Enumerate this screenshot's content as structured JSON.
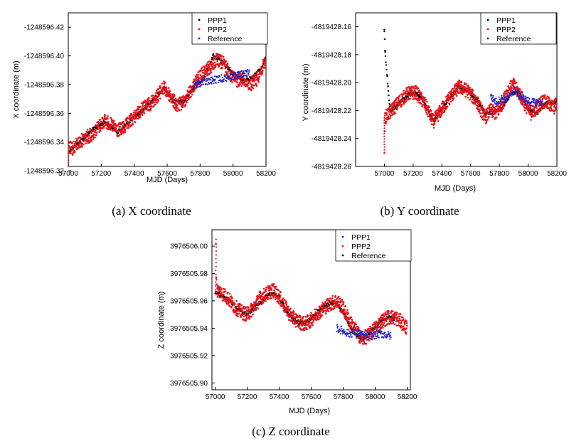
{
  "chart_data": [
    {
      "type": "scatter",
      "panel": "x",
      "caption": "(a) X coordinate",
      "xlabel": "MJD (Days)",
      "ylabel": "X coordinate (m)",
      "xlim": [
        57000,
        58200
      ],
      "ylim": [
        -1248596.323,
        -1248596.43
      ],
      "x_ticks": [
        57000,
        57200,
        57400,
        57600,
        57800,
        58000,
        58200
      ],
      "y_ticks": [
        "-1248596.32",
        "-1248596.34",
        "-1248596.36",
        "-1248596.38",
        "-1248596.40",
        "-1248596.42"
      ],
      "legend_position": "top-right",
      "grid": false,
      "series": [
        {
          "name": "PPP1",
          "color": "#000000",
          "x": [
            57000,
            57060,
            57140,
            57220,
            57300,
            57380,
            57460,
            57520,
            57580,
            57640,
            57700,
            57760,
            57820,
            57880,
            57940,
            58000,
            58060,
            58120,
            58180,
            58210
          ],
          "y": [
            -1248596.333,
            -1248596.339,
            -1248596.348,
            -1248596.354,
            -1248596.347,
            -1248596.355,
            -1248596.363,
            -1248596.37,
            -1248596.378,
            -1248596.368,
            -1248596.368,
            -1248596.378,
            -1248596.384,
            -1248596.4,
            -1248596.395,
            -1248596.387,
            -1248596.383,
            -1248596.385,
            -1248596.393,
            -1248596.403
          ]
        },
        {
          "name": "PPP2",
          "color": "#e8141b",
          "x": [
            57000,
            57005,
            57020,
            57060,
            57100,
            57140,
            57180,
            57220,
            57260,
            57300,
            57340,
            57380,
            57420,
            57460,
            57500,
            57540,
            57580,
            57620,
            57660,
            57700,
            57740,
            57780,
            57820,
            57860,
            57900,
            57940,
            57980,
            58020,
            58060,
            58100,
            58140,
            58180,
            58210
          ],
          "y": [
            -1248596.323,
            -1248596.336,
            -1248596.335,
            -1248596.339,
            -1248596.343,
            -1248596.345,
            -1248596.35,
            -1248596.355,
            -1248596.352,
            -1248596.348,
            -1248596.35,
            -1248596.355,
            -1248596.36,
            -1248596.364,
            -1248596.367,
            -1248596.372,
            -1248596.378,
            -1248596.372,
            -1248596.365,
            -1248596.368,
            -1248596.375,
            -1248596.383,
            -1248596.388,
            -1248596.392,
            -1248596.397,
            -1248596.395,
            -1248596.388,
            -1248596.383,
            -1248596.384,
            -1248596.38,
            -1248596.383,
            -1248596.392,
            -1248596.398
          ]
        },
        {
          "name": "Reference",
          "color": "#2323c8",
          "x": [
            57760,
            57800,
            57840,
            57880,
            57920,
            57960,
            58000,
            58040,
            58080,
            58100
          ],
          "y": [
            -1248596.379,
            -1248596.381,
            -1248596.382,
            -1248596.383,
            -1248596.384,
            -1248596.385,
            -1248596.386,
            -1248596.387,
            -1248596.388,
            -1248596.388
          ]
        }
      ]
    },
    {
      "type": "scatter",
      "panel": "y",
      "caption": "(b) Y coordinate",
      "xlabel": "MJD (Days)",
      "ylabel": "Y coordinate (m)",
      "xlim": [
        56800,
        58200
      ],
      "ylim": [
        -4819428.26,
        -4819428.15
      ],
      "x_ticks": [
        57000,
        57200,
        57400,
        57600,
        57800,
        58000,
        58200
      ],
      "y_ticks": [
        "-4819428.16",
        "-4819428.18",
        "-4819428.20",
        "-4819428.22",
        "-4819428.24",
        "-4819428.26"
      ],
      "legend_position": "top-right",
      "grid": false,
      "series": [
        {
          "name": "PPP1",
          "color": "#000000",
          "x": [
            57000,
            57005,
            57040,
            57100,
            57160,
            57220,
            57280,
            57340,
            57400,
            57460,
            57520,
            57580,
            57640,
            57700,
            57760,
            57820,
            57880,
            57940,
            58000,
            58060,
            58120,
            58180,
            58200
          ],
          "y": [
            -4819428.162,
            -4819428.178,
            -4819428.221,
            -4819428.215,
            -4819428.209,
            -4819428.207,
            -4819428.214,
            -4819428.228,
            -4819428.219,
            -4819428.21,
            -4819428.203,
            -4819428.206,
            -4819428.212,
            -4819428.222,
            -4819428.221,
            -4819428.218,
            -4819428.207,
            -4819428.208,
            -4819428.219,
            -4819428.222,
            -4819428.215,
            -4819428.214,
            -4819428.213
          ]
        },
        {
          "name": "PPP2",
          "color": "#e8141b",
          "x": [
            57000,
            57000,
            57005,
            57040,
            57100,
            57160,
            57220,
            57280,
            57340,
            57400,
            57460,
            57520,
            57580,
            57640,
            57700,
            57740,
            57780,
            57820,
            57860,
            57900,
            57940,
            57980,
            58020,
            58060,
            58100,
            58140,
            58180,
            58200
          ],
          "y": [
            -4819428.25,
            -4819428.236,
            -4819428.225,
            -4819428.221,
            -4819428.214,
            -4819428.208,
            -4819428.207,
            -4819428.215,
            -4819428.228,
            -4819428.219,
            -4819428.21,
            -4819428.203,
            -4819428.206,
            -4819428.213,
            -4819428.225,
            -4819428.22,
            -4819428.222,
            -4819428.215,
            -4819428.205,
            -4819428.202,
            -4819428.208,
            -4819428.216,
            -4819428.222,
            -4819428.218,
            -4819428.213,
            -4819428.215,
            -4819428.218,
            -4819428.214
          ]
        },
        {
          "name": "Reference",
          "color": "#2323c8",
          "x": [
            57740,
            57780,
            57820,
            57860,
            57900,
            57940,
            57980,
            58020,
            58060,
            58100
          ],
          "y": [
            -4819428.21,
            -4819428.214,
            -4819428.211,
            -4819428.212,
            -4819428.205,
            -4819428.209,
            -4819428.212,
            -4819428.214,
            -4819428.214,
            -4819428.214
          ]
        }
      ]
    },
    {
      "type": "scatter",
      "panel": "z",
      "caption": "(c) Z coordinate",
      "xlabel": "MJD (Days)",
      "ylabel": "Z coordinate (m)",
      "xlim": [
        56980,
        58220
      ],
      "ylim": [
        3976505.895,
        3976506.012
      ],
      "x_ticks": [
        57000,
        57200,
        57400,
        57600,
        57800,
        58000,
        58200
      ],
      "y_ticks": [
        "3976505.90",
        "3976505.92",
        "3976505.94",
        "3976505.96",
        "3976505.98",
        "3976506.00"
      ],
      "legend_position": "top-right",
      "grid": false,
      "series": [
        {
          "name": "PPP1",
          "color": "#2323c8",
          "x": [
            57760,
            57800,
            57840,
            57880,
            57920,
            57960,
            58000,
            58040,
            58080,
            58100
          ],
          "y": [
            3976505.94,
            3976505.938,
            3976505.936,
            3976505.937,
            3976505.935,
            3976505.934,
            3976505.935,
            3976505.936,
            3976505.935,
            3976505.934
          ]
        },
        {
          "name": "PPP2",
          "color": "#e8141b",
          "x": [
            57005,
            57005,
            57010,
            57040,
            57080,
            57120,
            57160,
            57200,
            57240,
            57280,
            57320,
            57360,
            57400,
            57440,
            57480,
            57520,
            57560,
            57600,
            57640,
            57680,
            57720,
            57760,
            57800,
            57840,
            57880,
            57920,
            57960,
            58000,
            58040,
            58080,
            58120,
            58160,
            58200
          ],
          "y": [
            3976506.005,
            3976505.98,
            3976505.968,
            3976505.966,
            3976505.962,
            3976505.956,
            3976505.952,
            3976505.95,
            3976505.955,
            3976505.962,
            3976505.965,
            3976505.968,
            3976505.963,
            3976505.955,
            3976505.948,
            3976505.945,
            3976505.943,
            3976505.946,
            3976505.951,
            3976505.955,
            3976505.958,
            3976505.96,
            3976505.955,
            3976505.945,
            3976505.938,
            3976505.932,
            3976505.935,
            3976505.94,
            3976505.945,
            3976505.948,
            3976505.948,
            3976505.945,
            3976505.94
          ]
        },
        {
          "name": "Reference",
          "color": "#000000",
          "x": [
            57000,
            57040,
            57080,
            57120,
            57160,
            57200,
            57240,
            57280,
            57320,
            57360,
            57400,
            57440,
            57480,
            57520,
            57560,
            57600,
            57640,
            57680,
            57720,
            57760,
            57800,
            57840,
            57880,
            57920,
            57960,
            58000,
            58040,
            58080,
            58120
          ],
          "y": [
            3976505.966,
            3976505.964,
            3976505.961,
            3976505.957,
            3976505.952,
            3976505.95,
            3976505.954,
            3976505.959,
            3976505.963,
            3976505.966,
            3976505.962,
            3976505.954,
            3976505.947,
            3976505.944,
            3976505.944,
            3976505.947,
            3976505.952,
            3976505.956,
            3976505.958,
            3976505.958,
            3976505.952,
            3976505.942,
            3976505.935,
            3976505.932,
            3976505.936,
            3976505.941,
            3976505.946,
            3976505.948,
            3976505.947
          ]
        }
      ]
    }
  ]
}
